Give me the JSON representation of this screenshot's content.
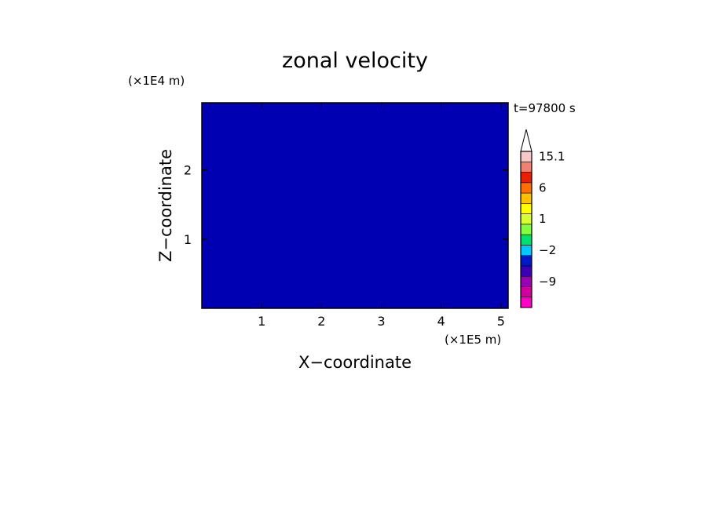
{
  "chart_data": {
    "type": "heatmap",
    "title": "zonal velocity",
    "xlabel": "X−coordinate",
    "ylabel": "Z−coordinate",
    "x_unit": "(×1E5 m)",
    "y_unit": "(×1E4 m)",
    "time_label": "t=97800 s",
    "x_ticks": [
      1,
      2,
      3,
      4,
      5
    ],
    "x_tick_labels": [
      "1",
      "2",
      "3",
      "4",
      "5"
    ],
    "y_ticks": [
      1,
      2
    ],
    "y_tick_labels": [
      "1",
      "2"
    ],
    "xlim": [
      0,
      5.12
    ],
    "ylim": [
      0,
      2.97
    ],
    "colorbar": {
      "levels": [
        -15,
        -12,
        -9,
        -6,
        -3,
        -2,
        -1,
        0,
        1,
        2,
        3,
        6,
        9,
        12,
        15.1
      ],
      "colors": [
        "#ff00c8",
        "#d0009c",
        "#9a00b4",
        "#3a00b8",
        "#0018c8",
        "#00c8ff",
        "#00e070",
        "#80ff40",
        "#d8ff30",
        "#ffff00",
        "#ffc000",
        "#ff7000",
        "#e82000",
        "#f08070",
        "#f8c8c8"
      ],
      "labels": [
        {
          "value": -9,
          "text": "−9"
        },
        {
          "value": -2,
          "text": "−2"
        },
        {
          "value": 1,
          "text": "1"
        },
        {
          "value": 6,
          "text": "6"
        },
        {
          "value": 15.1,
          "text": "15.1"
        }
      ],
      "extend": "max"
    }
  }
}
